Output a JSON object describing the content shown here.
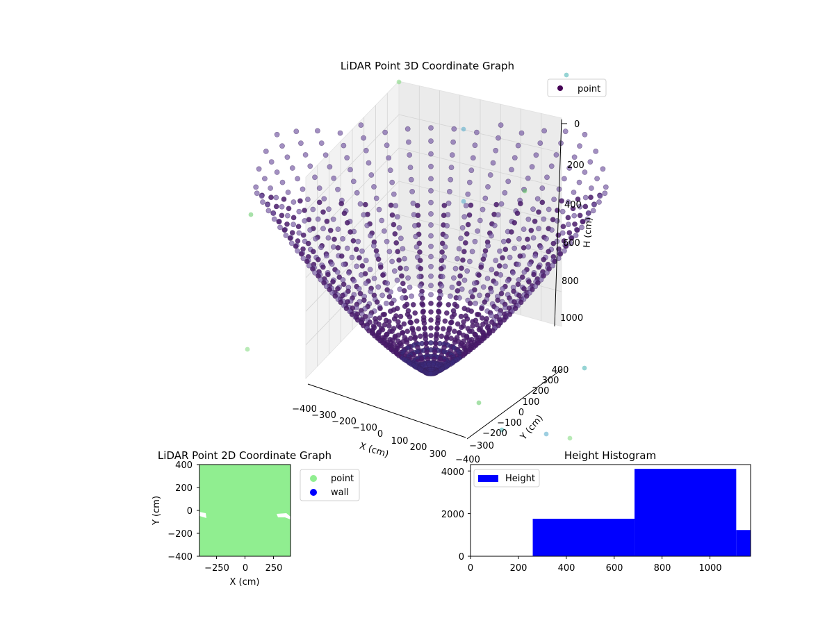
{
  "chart_data": [
    {
      "type": "scatter",
      "projection": "3d",
      "title": "LiDAR Point 3D Coordinate Graph",
      "xlabel": "X (cm)",
      "ylabel": "Y (cm)",
      "zlabel": "H (cm)",
      "x_ticks": [
        "−400",
        "−300",
        "−200",
        "−100",
        "0",
        "100",
        "200",
        "300",
        "400"
      ],
      "y_ticks": [
        "−400",
        "−300",
        "−200",
        "−100",
        "0",
        "100",
        "200",
        "300",
        "400"
      ],
      "z_ticks": [
        "0",
        "200",
        "400",
        "600",
        "800",
        "1000"
      ],
      "xlim": [
        -400,
        400
      ],
      "ylim": [
        -400,
        400
      ],
      "zlim": [
        0,
        1000
      ],
      "z_axis_inverted": true,
      "grid": true,
      "legend": {
        "position": "top-right",
        "entries": [
          {
            "label": "point",
            "color": "#440154"
          }
        ]
      },
      "colormap": "viridis",
      "rays": 41,
      "points_per_ray": 30,
      "rim_radius_cm": 420,
      "accent_colors": [
        "#7dd87a",
        "#3fb0b0",
        "#5ec962",
        "#4ea8c8"
      ]
    },
    {
      "type": "scatter",
      "title": "LiDAR Point 2D Coordinate Graph",
      "xlabel": "X (cm)",
      "ylabel": "Y (cm)",
      "x_ticks": [
        "−250",
        "0",
        "250"
      ],
      "x_tick_values": [
        -250,
        0,
        250
      ],
      "y_ticks": [
        "−400",
        "−200",
        "0",
        "200",
        "400"
      ],
      "y_tick_values": [
        -400,
        -200,
        0,
        200,
        400
      ],
      "xlim": [
        -400,
        400
      ],
      "ylim": [
        -400,
        400
      ],
      "fill_color": "#90ee90",
      "legend": {
        "position": "outside-right",
        "entries": [
          {
            "label": "point",
            "color": "#90ee90"
          },
          {
            "label": "wall",
            "color": "#0000ff"
          }
        ]
      }
    },
    {
      "type": "bar",
      "subtype": "histogram",
      "title": "Height Histogram",
      "xlabel": "",
      "ylabel": "",
      "series": [
        {
          "name": "Height",
          "color": "#0000ff"
        }
      ],
      "bins": [
        {
          "x0": 0,
          "x1": 260,
          "count": 0
        },
        {
          "x0": 260,
          "x1": 685,
          "count": 1760
        },
        {
          "x0": 685,
          "x1": 1110,
          "count": 4100
        },
        {
          "x0": 1110,
          "x1": 1170,
          "count": 1230
        }
      ],
      "x_ticks": [
        "0",
        "200",
        "400",
        "600",
        "800",
        "1000"
      ],
      "x_tick_values": [
        0,
        200,
        400,
        600,
        800,
        1000
      ],
      "y_ticks": [
        "0",
        "2000",
        "4000"
      ],
      "y_tick_values": [
        0,
        2000,
        4000
      ],
      "xlim": [
        0,
        1170
      ],
      "ylim": [
        0,
        4300
      ],
      "legend": {
        "position": "top-left"
      }
    }
  ]
}
